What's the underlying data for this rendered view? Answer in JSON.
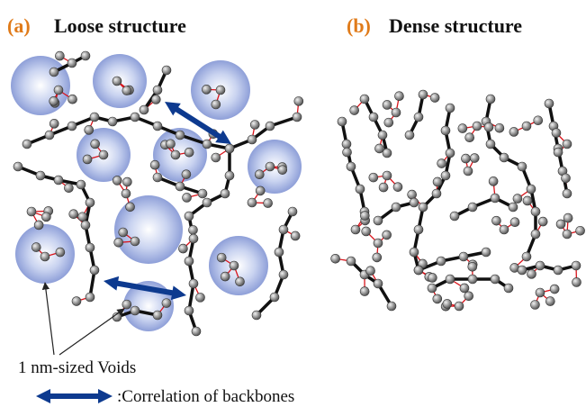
{
  "panel_a": {
    "label": "(a)",
    "title": "Loose structure"
  },
  "panel_b": {
    "label": "(b)",
    "title": "Dense structure"
  },
  "legend": {
    "voids": "1 nm-sized Voids",
    "correlation": ":Correlation of backbones"
  }
}
